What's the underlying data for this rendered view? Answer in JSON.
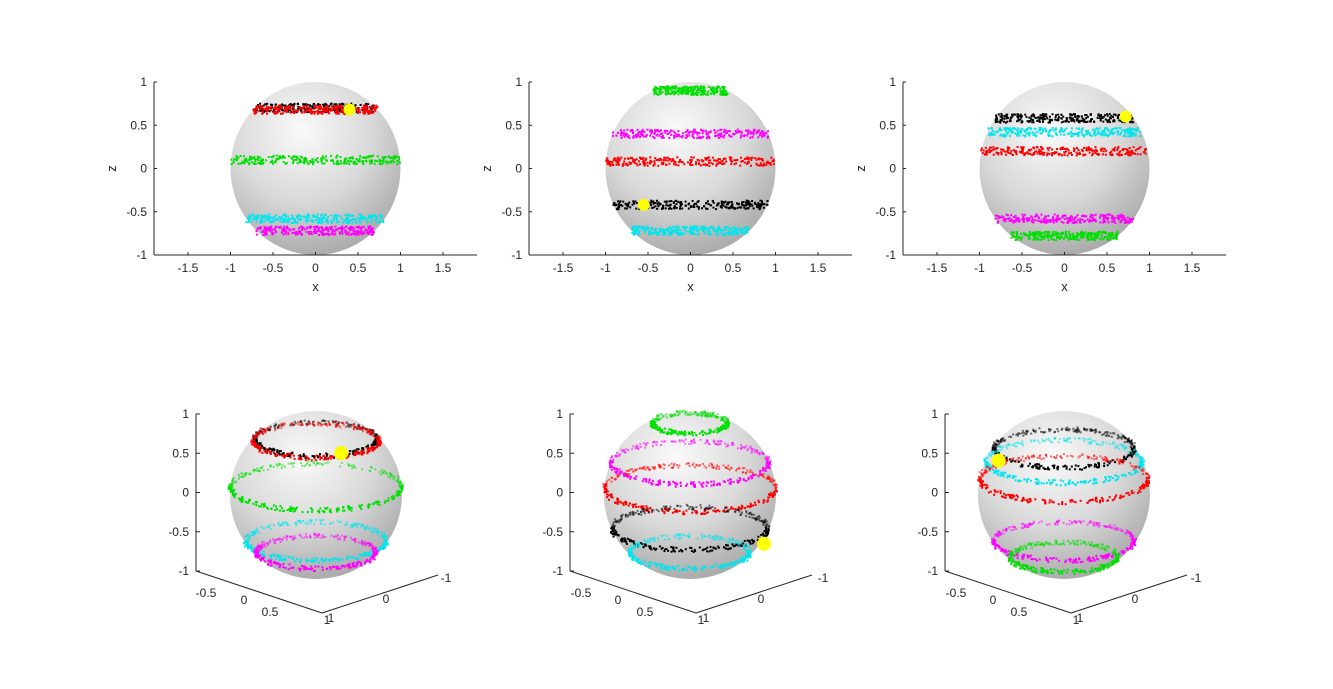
{
  "chart_data": [
    {
      "type": "scatter",
      "view": "x-z projection",
      "xlabel": "x",
      "ylabel": "z",
      "xlim": [
        -1.9,
        1.9
      ],
      "ylim": [
        -1,
        1
      ],
      "xticks": [
        "-1.5",
        "-1",
        "-0.5",
        "0",
        "0.5",
        "1",
        "1.5"
      ],
      "yticks": [
        "-1",
        "-0.5",
        "0",
        "0.5",
        "1"
      ],
      "sphere": {
        "radius": 1
      },
      "series": [
        {
          "color": "#000000",
          "z": 0.7
        },
        {
          "color": "#ff0000",
          "z": 0.68
        },
        {
          "color": "#00e000",
          "z": 0.1
        },
        {
          "color": "#00e5ee",
          "z": -0.58
        },
        {
          "color": "#ff00ff",
          "z": -0.72
        }
      ],
      "marker": {
        "color": "#ffff00",
        "x": 0.4,
        "z": 0.68
      }
    },
    {
      "type": "scatter",
      "view": "x-z projection",
      "xlabel": "x",
      "ylabel": "z",
      "xlim": [
        -1.9,
        1.9
      ],
      "ylim": [
        -1,
        1
      ],
      "xticks": [
        "-1.5",
        "-1",
        "-0.5",
        "0",
        "0.5",
        "1",
        "1.5"
      ],
      "yticks": [
        "-1",
        "-0.5",
        "0",
        "0.5",
        "1"
      ],
      "sphere": {
        "radius": 1
      },
      "series": [
        {
          "color": "#00e000",
          "z": 0.9
        },
        {
          "color": "#ff00ff",
          "z": 0.4
        },
        {
          "color": "#ff0000",
          "z": 0.08
        },
        {
          "color": "#000000",
          "z": -0.42
        },
        {
          "color": "#00e5ee",
          "z": -0.72
        }
      ],
      "marker": {
        "color": "#ffff00",
        "x": -0.55,
        "z": -0.42
      }
    },
    {
      "type": "scatter",
      "view": "x-z projection",
      "xlabel": "x",
      "ylabel": "z",
      "xlim": [
        -1.9,
        1.9
      ],
      "ylim": [
        -1,
        1
      ],
      "xticks": [
        "-1.5",
        "-1",
        "-0.5",
        "0",
        "0.5",
        "1",
        "1.5"
      ],
      "yticks": [
        "-1",
        "-0.5",
        "0",
        "0.5",
        "1"
      ],
      "sphere": {
        "radius": 1
      },
      "series": [
        {
          "color": "#000000",
          "z": 0.58
        },
        {
          "color": "#00e5ee",
          "z": 0.42
        },
        {
          "color": "#ff0000",
          "z": 0.2
        },
        {
          "color": "#ff00ff",
          "z": -0.58
        },
        {
          "color": "#00e000",
          "z": -0.78
        }
      ],
      "marker": {
        "color": "#ffff00",
        "x": 0.72,
        "z": 0.6
      }
    },
    {
      "type": "scatter",
      "view": "3-D",
      "ylim": [
        -1,
        1
      ],
      "zticks": [
        "-1",
        "-0.5",
        "0",
        "0.5",
        "1"
      ],
      "xticks": [
        "-0.5",
        "0",
        "0.5",
        "1"
      ],
      "yticks": [
        "-1",
        "0",
        "1"
      ],
      "sphere": {
        "radius": 1
      },
      "series": [
        {
          "color": "#000000",
          "z": 0.7
        },
        {
          "color": "#ff0000",
          "z": 0.68
        },
        {
          "color": "#00e000",
          "z": 0.1
        },
        {
          "color": "#00e5ee",
          "z": -0.58
        },
        {
          "color": "#ff00ff",
          "z": -0.72
        }
      ],
      "marker": {
        "color": "#ffff00",
        "x": 0.4,
        "z": 0.68
      }
    },
    {
      "type": "scatter",
      "view": "3-D",
      "ylim": [
        -1,
        1
      ],
      "zticks": [
        "-1",
        "-0.5",
        "0",
        "0.5",
        "1"
      ],
      "xticks": [
        "-0.5",
        "0",
        "0.5",
        "1"
      ],
      "yticks": [
        "-1",
        "0",
        "1"
      ],
      "sphere": {
        "radius": 1
      },
      "series": [
        {
          "color": "#00e000",
          "z": 0.9
        },
        {
          "color": "#ff00ff",
          "z": 0.4
        },
        {
          "color": "#ff0000",
          "z": 0.08
        },
        {
          "color": "#000000",
          "z": -0.42
        },
        {
          "color": "#00e5ee",
          "z": -0.72
        }
      ],
      "marker": {
        "color": "#ffff00",
        "x": 0.95,
        "z": -0.42
      }
    },
    {
      "type": "scatter",
      "view": "3-D",
      "ylim": [
        -1,
        1
      ],
      "zticks": [
        "-1",
        "-0.5",
        "0",
        "0.5",
        "1"
      ],
      "xticks": [
        "-0.5",
        "0",
        "0.5",
        "1"
      ],
      "yticks": [
        "-1",
        "0",
        "1"
      ],
      "sphere": {
        "radius": 1
      },
      "series": [
        {
          "color": "#000000",
          "z": 0.58
        },
        {
          "color": "#00e5ee",
          "z": 0.42
        },
        {
          "color": "#ff0000",
          "z": 0.2
        },
        {
          "color": "#ff00ff",
          "z": -0.58
        },
        {
          "color": "#00e000",
          "z": -0.78
        }
      ],
      "marker": {
        "color": "#ffff00",
        "x": -0.95,
        "z": 0.6
      }
    }
  ]
}
